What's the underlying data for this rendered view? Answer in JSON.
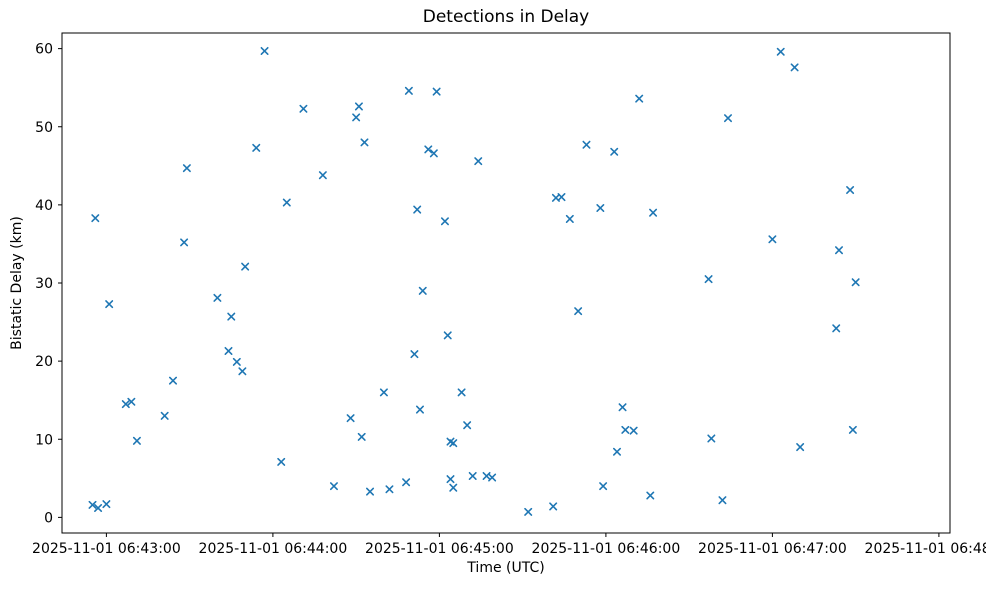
{
  "chart_data": {
    "type": "scatter",
    "title": "Detections in Delay",
    "xlabel": "Time (UTC)",
    "ylabel": "Bistatic Delay (km)",
    "marker": "x",
    "marker_color": "#1f77b4",
    "legend": "none",
    "grid": false,
    "x_axis": {
      "tick_labels": [
        "2025-11-01 06:43:00",
        "2025-11-01 06:44:00",
        "2025-11-01 06:45:00",
        "2025-11-01 06:46:00",
        "2025-11-01 06:47:00",
        "2025-11-01 06:48:00"
      ],
      "tick_seconds": [
        0,
        60,
        120,
        180,
        240,
        300
      ],
      "range_seconds": [
        -16,
        304
      ]
    },
    "y_axis": {
      "ticks": [
        0,
        10,
        20,
        30,
        40,
        50,
        60
      ],
      "range": [
        -2,
        62
      ]
    },
    "points_format": [
      "seconds_after_06:43:00_UTC",
      "bistatic_delay_km"
    ],
    "points": [
      [
        -5,
        1.6
      ],
      [
        -4,
        38.3
      ],
      [
        -3,
        1.2
      ],
      [
        0,
        1.7
      ],
      [
        1,
        27.3
      ],
      [
        7,
        14.5
      ],
      [
        9,
        14.8
      ],
      [
        11,
        9.8
      ],
      [
        21,
        13.0
      ],
      [
        24,
        17.5
      ],
      [
        28,
        35.2
      ],
      [
        29,
        44.7
      ],
      [
        40,
        28.1
      ],
      [
        44,
        21.3
      ],
      [
        45,
        25.7
      ],
      [
        47,
        19.9
      ],
      [
        49,
        18.7
      ],
      [
        50,
        32.1
      ],
      [
        54,
        47.3
      ],
      [
        57,
        59.7
      ],
      [
        63,
        7.1
      ],
      [
        65,
        40.3
      ],
      [
        71,
        52.3
      ],
      [
        78,
        43.8
      ],
      [
        82,
        4.0
      ],
      [
        88,
        12.7
      ],
      [
        90,
        51.2
      ],
      [
        91,
        52.6
      ],
      [
        92,
        10.3
      ],
      [
        93,
        48.0
      ],
      [
        95,
        3.3
      ],
      [
        100,
        16.0
      ],
      [
        102,
        3.6
      ],
      [
        108,
        4.5
      ],
      [
        109,
        54.6
      ],
      [
        111,
        20.9
      ],
      [
        112,
        39.4
      ],
      [
        113,
        13.8
      ],
      [
        114,
        29.0
      ],
      [
        116,
        47.1
      ],
      [
        118,
        46.6
      ],
      [
        119,
        54.5
      ],
      [
        122,
        37.9
      ],
      [
        123,
        23.3
      ],
      [
        124,
        9.7
      ],
      [
        125,
        9.5
      ],
      [
        124,
        4.9
      ],
      [
        125,
        3.8
      ],
      [
        128,
        16.0
      ],
      [
        130,
        11.8
      ],
      [
        132,
        5.3
      ],
      [
        134,
        45.6
      ],
      [
        137,
        5.3
      ],
      [
        139,
        5.1
      ],
      [
        152,
        0.7
      ],
      [
        161,
        1.4
      ],
      [
        162,
        40.9
      ],
      [
        164,
        41.0
      ],
      [
        167,
        38.2
      ],
      [
        170,
        26.4
      ],
      [
        173,
        47.7
      ],
      [
        178,
        39.6
      ],
      [
        179,
        4.0
      ],
      [
        183,
        46.8
      ],
      [
        184,
        8.4
      ],
      [
        186,
        14.1
      ],
      [
        187,
        11.2
      ],
      [
        190,
        11.1
      ],
      [
        192,
        53.6
      ],
      [
        196,
        2.8
      ],
      [
        197,
        39.0
      ],
      [
        217,
        30.5
      ],
      [
        218,
        10.1
      ],
      [
        222,
        2.2
      ],
      [
        224,
        51.1
      ],
      [
        240,
        35.6
      ],
      [
        243,
        59.6
      ],
      [
        248,
        57.6
      ],
      [
        250,
        9.0
      ],
      [
        263,
        24.2
      ],
      [
        264,
        34.2
      ],
      [
        268,
        41.9
      ],
      [
        269,
        11.2
      ],
      [
        270,
        30.1
      ]
    ]
  }
}
